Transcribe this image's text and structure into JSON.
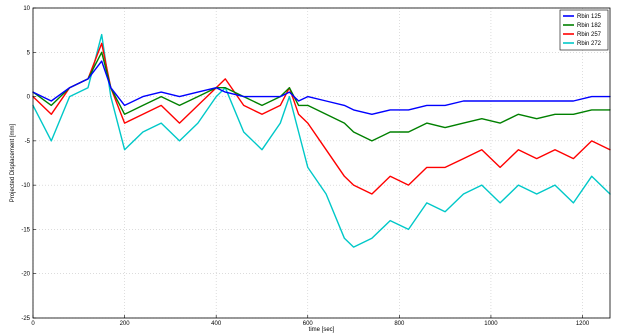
{
  "chart_data": {
    "type": "line",
    "title": "",
    "xlabel": "time [sec]",
    "ylabel": "Projected Displacement [mm]",
    "xlim": [
      0,
      1260
    ],
    "ylim": [
      -25,
      10
    ],
    "grid": true,
    "legend_position": "top-right",
    "x_ticks": [
      0,
      200,
      400,
      600,
      800,
      1000,
      1200
    ],
    "y_ticks": [
      10,
      5,
      0,
      -5,
      -10,
      -15,
      -20,
      -25
    ],
    "series": [
      {
        "name": "Rbin 125",
        "color": "#0000ff",
        "points": [
          [
            0,
            0.5
          ],
          [
            40,
            -0.5
          ],
          [
            80,
            1
          ],
          [
            120,
            2
          ],
          [
            150,
            4
          ],
          [
            170,
            1
          ],
          [
            200,
            -1
          ],
          [
            240,
            0
          ],
          [
            280,
            0.5
          ],
          [
            320,
            0
          ],
          [
            360,
            0.5
          ],
          [
            400,
            1
          ],
          [
            420,
            0.5
          ],
          [
            460,
            0
          ],
          [
            500,
            0
          ],
          [
            540,
            0
          ],
          [
            560,
            0.5
          ],
          [
            580,
            -0.5
          ],
          [
            600,
            0
          ],
          [
            640,
            -0.5
          ],
          [
            680,
            -1
          ],
          [
            700,
            -1.5
          ],
          [
            740,
            -2
          ],
          [
            780,
            -1.5
          ],
          [
            820,
            -1.5
          ],
          [
            860,
            -1
          ],
          [
            900,
            -1
          ],
          [
            940,
            -0.5
          ],
          [
            980,
            -0.5
          ],
          [
            1020,
            -0.5
          ],
          [
            1060,
            -0.5
          ],
          [
            1100,
            -0.5
          ],
          [
            1140,
            -0.5
          ],
          [
            1180,
            -0.5
          ],
          [
            1220,
            0
          ],
          [
            1260,
            0
          ]
        ]
      },
      {
        "name": "Rbin 182",
        "color": "#008000",
        "points": [
          [
            0,
            0.5
          ],
          [
            40,
            -1
          ],
          [
            80,
            1
          ],
          [
            120,
            2
          ],
          [
            150,
            5
          ],
          [
            170,
            1
          ],
          [
            200,
            -2
          ],
          [
            240,
            -1
          ],
          [
            280,
            0
          ],
          [
            320,
            -1
          ],
          [
            360,
            0
          ],
          [
            400,
            1
          ],
          [
            420,
            1
          ],
          [
            460,
            0
          ],
          [
            500,
            -1
          ],
          [
            540,
            0
          ],
          [
            560,
            1
          ],
          [
            580,
            -1
          ],
          [
            600,
            -1
          ],
          [
            640,
            -2
          ],
          [
            680,
            -3
          ],
          [
            700,
            -4
          ],
          [
            740,
            -5
          ],
          [
            780,
            -4
          ],
          [
            820,
            -4
          ],
          [
            860,
            -3
          ],
          [
            900,
            -3.5
          ],
          [
            940,
            -3
          ],
          [
            980,
            -2.5
          ],
          [
            1020,
            -3
          ],
          [
            1060,
            -2
          ],
          [
            1100,
            -2.5
          ],
          [
            1140,
            -2
          ],
          [
            1180,
            -2
          ],
          [
            1220,
            -1.5
          ],
          [
            1260,
            -1.5
          ]
        ]
      },
      {
        "name": "Rbin 257",
        "color": "#ff0000",
        "points": [
          [
            0,
            0
          ],
          [
            40,
            -2
          ],
          [
            80,
            1
          ],
          [
            120,
            2
          ],
          [
            150,
            6
          ],
          [
            170,
            1
          ],
          [
            200,
            -3
          ],
          [
            240,
            -2
          ],
          [
            280,
            -1
          ],
          [
            320,
            -3
          ],
          [
            360,
            -1
          ],
          [
            400,
            1
          ],
          [
            420,
            2
          ],
          [
            460,
            -1
          ],
          [
            500,
            -2
          ],
          [
            540,
            -1
          ],
          [
            560,
            1
          ],
          [
            580,
            -2
          ],
          [
            600,
            -3
          ],
          [
            640,
            -6
          ],
          [
            680,
            -9
          ],
          [
            700,
            -10
          ],
          [
            740,
            -11
          ],
          [
            780,
            -9
          ],
          [
            820,
            -10
          ],
          [
            860,
            -8
          ],
          [
            900,
            -8
          ],
          [
            940,
            -7
          ],
          [
            980,
            -6
          ],
          [
            1020,
            -8
          ],
          [
            1060,
            -6
          ],
          [
            1100,
            -7
          ],
          [
            1140,
            -6
          ],
          [
            1180,
            -7
          ],
          [
            1220,
            -5
          ],
          [
            1260,
            -6
          ]
        ]
      },
      {
        "name": "Rbin 272",
        "color": "#00c8c8",
        "points": [
          [
            0,
            -1
          ],
          [
            40,
            -5
          ],
          [
            80,
            0
          ],
          [
            120,
            1
          ],
          [
            150,
            7
          ],
          [
            170,
            0
          ],
          [
            200,
            -6
          ],
          [
            240,
            -4
          ],
          [
            280,
            -3
          ],
          [
            320,
            -5
          ],
          [
            360,
            -3
          ],
          [
            400,
            0
          ],
          [
            420,
            1
          ],
          [
            460,
            -4
          ],
          [
            500,
            -6
          ],
          [
            540,
            -3
          ],
          [
            560,
            0
          ],
          [
            580,
            -4
          ],
          [
            600,
            -8
          ],
          [
            640,
            -11
          ],
          [
            680,
            -16
          ],
          [
            700,
            -17
          ],
          [
            740,
            -16
          ],
          [
            780,
            -14
          ],
          [
            820,
            -15
          ],
          [
            860,
            -12
          ],
          [
            900,
            -13
          ],
          [
            940,
            -11
          ],
          [
            980,
            -10
          ],
          [
            1020,
            -12
          ],
          [
            1060,
            -10
          ],
          [
            1100,
            -11
          ],
          [
            1140,
            -10
          ],
          [
            1180,
            -12
          ],
          [
            1220,
            -9
          ],
          [
            1260,
            -11
          ]
        ]
      }
    ]
  }
}
